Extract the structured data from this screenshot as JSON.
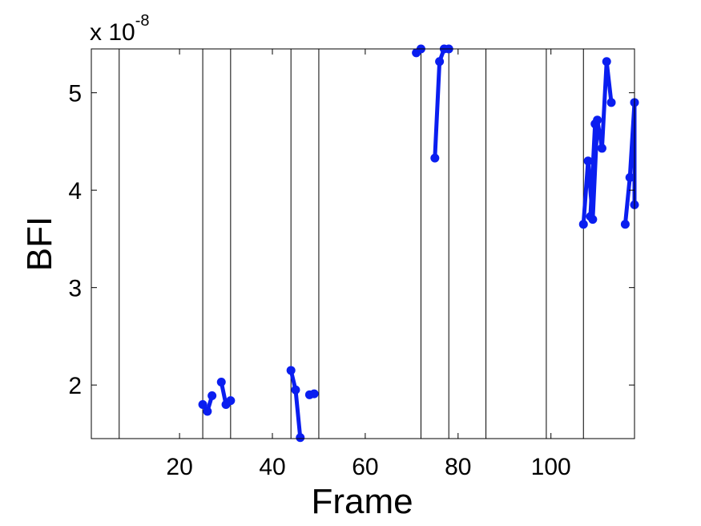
{
  "chart_data": {
    "type": "line",
    "title": "",
    "xlabel": "Frame",
    "ylabel": "BFI",
    "y_multiplier_text": "x 10",
    "y_multiplier_exponent": "-8",
    "xlim": [
      1,
      118
    ],
    "ylim": [
      1.45,
      5.45
    ],
    "xticks": [
      20,
      40,
      60,
      80,
      100
    ],
    "yticks": [
      2,
      3,
      4,
      5
    ],
    "grid": false,
    "legend": "none",
    "line_color": "#0a1ef0",
    "vertical_lines": [
      7,
      25,
      31,
      44,
      50,
      72,
      78,
      86,
      99,
      107
    ],
    "segments": [
      {
        "x": [
          25,
          26,
          27
        ],
        "y": [
          1.8,
          1.73,
          1.89
        ]
      },
      {
        "x": [
          29,
          30,
          31
        ],
        "y": [
          2.03,
          1.8,
          1.84
        ]
      },
      {
        "x": [
          44,
          45,
          46
        ],
        "y": [
          2.15,
          1.95,
          1.46
        ]
      },
      {
        "x": [
          48,
          49
        ],
        "y": [
          1.9,
          1.91
        ]
      },
      {
        "x": [
          71,
          72
        ],
        "y": [
          5.41,
          5.45
        ]
      },
      {
        "x": [
          75,
          76,
          77,
          78
        ],
        "y": [
          4.33,
          5.32,
          5.45,
          5.45
        ]
      },
      {
        "x": [
          107,
          108,
          109,
          110,
          111,
          112,
          113
        ],
        "y": [
          3.65,
          4.3,
          3.7,
          4.72,
          4.43,
          5.32,
          4.9
        ]
      },
      {
        "x": [
          108.5,
          109.5
        ],
        "y": [
          3.73,
          4.68
        ]
      },
      {
        "x": [
          116,
          117,
          118,
          119
        ],
        "y": [
          3.65,
          4.13,
          4.9,
          3.85
        ]
      }
    ]
  }
}
